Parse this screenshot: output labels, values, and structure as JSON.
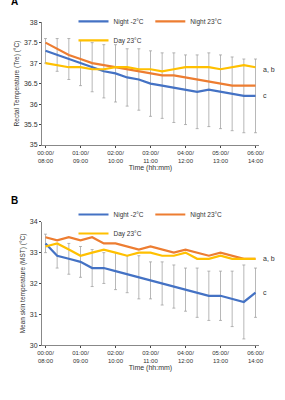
{
  "chart_data": [
    {
      "type": "line",
      "label": "A",
      "categories": [
        "00:00/ 08:00",
        null,
        null,
        "01:00/ 09:00",
        null,
        null,
        "02:00/ 10:00",
        null,
        null,
        "03:00/ 11:00",
        null,
        null,
        "04:00/ 12:00",
        null,
        null,
        "05:00/ 13:00",
        null,
        null,
        "06:00/ 14:00"
      ],
      "x_label": "Time (hh:mm)",
      "y_label": "Rectal Temperature (Tre) (°C)",
      "ylim": [
        35,
        38
      ],
      "yticks": [
        35,
        35.5,
        36,
        36.5,
        37,
        37.5,
        38
      ],
      "grid": false,
      "legend": "top",
      "series": [
        {
          "name": "Night -2°C",
          "color": "#4472c4",
          "values": [
            37.3,
            37.2,
            37.1,
            37.0,
            36.9,
            36.8,
            36.75,
            36.65,
            36.6,
            36.5,
            36.45,
            36.4,
            36.35,
            36.3,
            36.35,
            36.3,
            36.25,
            36.2,
            36.2
          ],
          "error": [
            0.3,
            0.4,
            0.5,
            0.55,
            0.6,
            0.65,
            0.7,
            0.7,
            0.75,
            0.8,
            0.8,
            0.85,
            0.85,
            0.9,
            0.9,
            0.9,
            0.9,
            0.9,
            0.9
          ]
        },
        {
          "name": "Night 23°C",
          "color": "#ed7d31",
          "values": [
            37.5,
            37.35,
            37.2,
            37.1,
            37.0,
            36.95,
            36.9,
            36.85,
            36.8,
            36.75,
            36.7,
            36.7,
            36.65,
            36.6,
            36.55,
            36.5,
            36.45,
            36.45,
            36.45
          ]
        },
        {
          "name": "Day 23°C",
          "color": "#ffc000",
          "values": [
            37.0,
            36.95,
            36.9,
            36.9,
            36.85,
            36.85,
            36.9,
            36.9,
            36.85,
            36.85,
            36.8,
            36.85,
            36.9,
            36.9,
            36.9,
            36.85,
            36.9,
            36.95,
            36.9
          ]
        }
      ],
      "annotations": [
        {
          "text": "a, b",
          "y": 36.85
        },
        {
          "text": "c",
          "y": 36.2
        }
      ]
    },
    {
      "type": "line",
      "label": "B",
      "categories": [
        "00:00/ 08:00",
        null,
        null,
        "01:00/ 09:00",
        null,
        null,
        "02:00/ 10:00",
        null,
        null,
        "03:00/ 11:00",
        null,
        null,
        "04:00/ 12:00",
        null,
        null,
        "05:00/ 13:00",
        null,
        null,
        "06:00/ 14:00"
      ],
      "x_label": "Time (hh:mm)",
      "y_label": "Mean skin temperature (MST) (°C)",
      "ylim": [
        30,
        34
      ],
      "yticks": [
        30,
        31,
        32,
        33,
        34
      ],
      "grid": false,
      "legend": "top",
      "series": [
        {
          "name": "Night -2°C",
          "color": "#4472c4",
          "values": [
            33.3,
            32.9,
            32.8,
            32.7,
            32.5,
            32.5,
            32.4,
            32.3,
            32.2,
            32.1,
            32.0,
            31.9,
            31.8,
            31.7,
            31.6,
            31.6,
            31.5,
            31.4,
            31.7
          ],
          "error": [
            0.3,
            0.4,
            0.5,
            0.5,
            0.6,
            0.5,
            0.6,
            0.6,
            0.7,
            0.6,
            0.7,
            0.7,
            0.7,
            0.8,
            0.8,
            0.8,
            0.9,
            1.2,
            0.8
          ]
        },
        {
          "name": "Night 23°C",
          "color": "#ed7d31",
          "values": [
            33.5,
            33.4,
            33.5,
            33.4,
            33.5,
            33.3,
            33.3,
            33.2,
            33.1,
            33.2,
            33.1,
            33.0,
            33.1,
            33.0,
            32.9,
            33.0,
            32.9,
            32.8,
            32.8
          ]
        },
        {
          "name": "Day 23°C",
          "color": "#ffc000",
          "values": [
            33.2,
            33.3,
            33.1,
            32.9,
            33.0,
            33.1,
            33.0,
            32.9,
            33.0,
            33.0,
            32.9,
            32.9,
            33.0,
            32.8,
            32.8,
            32.9,
            32.8,
            32.8,
            32.8
          ]
        }
      ],
      "annotations": [
        {
          "text": "a, b",
          "y": 32.8
        },
        {
          "text": "c",
          "y": 31.7
        }
      ]
    }
  ]
}
